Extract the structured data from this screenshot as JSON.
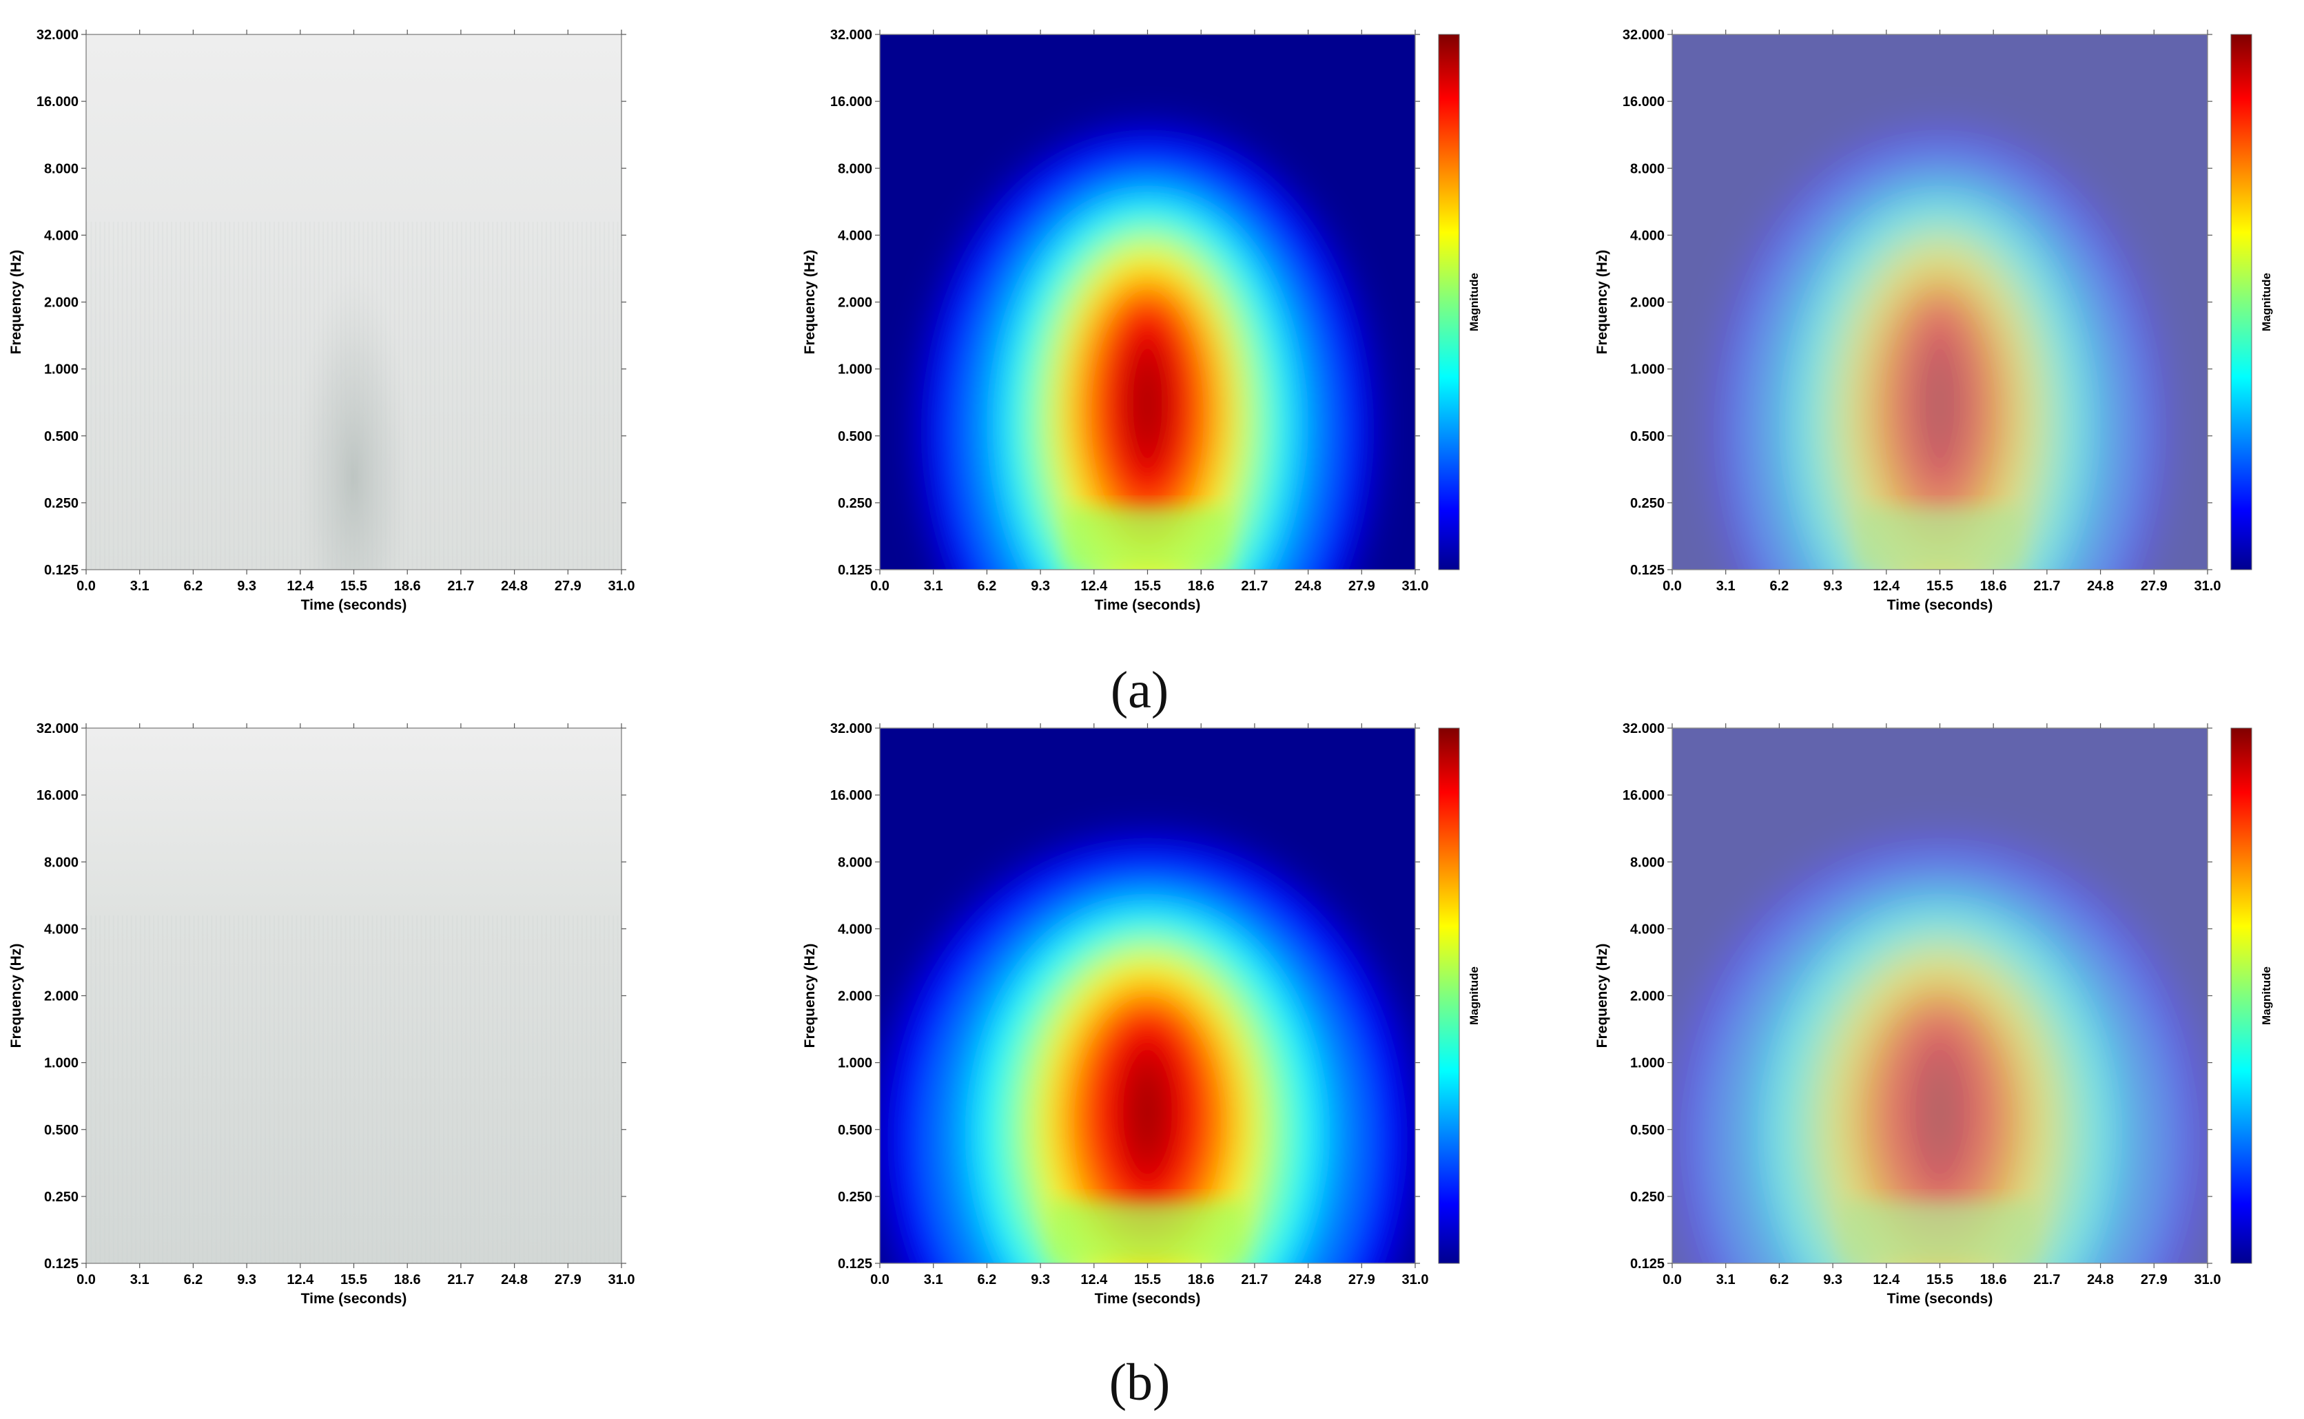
{
  "figure": {
    "panel_labels": [
      "(a)",
      "(b)"
    ],
    "colorbar_label": "Magnitude",
    "colormap": "jet",
    "colors": {
      "grayscale_light": "#ebebeb",
      "grayscale_dark": "#bfc6c3",
      "jet_low": "#00008f",
      "jet_mid": "#ffff00",
      "jet_high": "#800000",
      "overlay_base": "#8080b8"
    }
  },
  "chart_data": [
    {
      "type": "heatmap",
      "row": "a",
      "variant": "scalogram-grayscale",
      "xlabel": "Time (seconds)",
      "ylabel": "Frequency (Hz)",
      "x_ticks": [
        "0.0",
        "3.1",
        "6.2",
        "9.3",
        "12.4",
        "15.5",
        "18.6",
        "21.7",
        "24.8",
        "27.9",
        "31.0"
      ],
      "y_ticks": [
        "0.125",
        "0.250",
        "0.500",
        "1.000",
        "2.000",
        "4.000",
        "8.000",
        "16.000",
        "32.000"
      ],
      "xlim": [
        0,
        31
      ],
      "ylim": [
        0.125,
        32
      ],
      "yscale": "log2",
      "peak": {
        "time": 15.5,
        "frequency": 0.5
      }
    },
    {
      "type": "heatmap",
      "row": "a",
      "variant": "grad-cam",
      "colorbar": "Magnitude",
      "xlabel": "Time (seconds)",
      "ylabel": "Frequency (Hz)",
      "x_ticks": [
        "0.0",
        "3.1",
        "6.2",
        "9.3",
        "12.4",
        "15.5",
        "18.6",
        "21.7",
        "24.8",
        "27.9",
        "31.0"
      ],
      "y_ticks": [
        "0.125",
        "0.250",
        "0.500",
        "1.000",
        "2.000",
        "4.000",
        "8.000",
        "16.000",
        "32.000"
      ],
      "xlim": [
        0,
        31
      ],
      "ylim": [
        0.125,
        32
      ],
      "yscale": "log2",
      "peak": {
        "time": 15.5,
        "frequency": 0.7
      }
    },
    {
      "type": "heatmap",
      "row": "a",
      "variant": "overlay",
      "colorbar": "Magnitude",
      "xlabel": "Time (seconds)",
      "ylabel": "Frequency (Hz)",
      "x_ticks": [
        "0.0",
        "3.1",
        "6.2",
        "9.3",
        "12.4",
        "15.5",
        "18.6",
        "21.7",
        "24.8",
        "27.9",
        "31.0"
      ],
      "y_ticks": [
        "0.125",
        "0.250",
        "0.500",
        "1.000",
        "2.000",
        "4.000",
        "8.000",
        "16.000",
        "32.000"
      ],
      "xlim": [
        0,
        31
      ],
      "ylim": [
        0.125,
        32
      ],
      "yscale": "log2",
      "peak": {
        "time": 15.5,
        "frequency": 0.7
      }
    },
    {
      "type": "heatmap",
      "row": "b",
      "variant": "scalogram-grayscale",
      "xlabel": "Time (seconds)",
      "ylabel": "Frequency (Hz)",
      "x_ticks": [
        "0.0",
        "3.1",
        "6.2",
        "9.3",
        "12.4",
        "15.5",
        "18.6",
        "21.7",
        "24.8",
        "27.9",
        "31.0"
      ],
      "y_ticks": [
        "0.125",
        "0.250",
        "0.500",
        "1.000",
        "2.000",
        "4.000",
        "8.000",
        "16.000",
        "32.000"
      ],
      "xlim": [
        0,
        31
      ],
      "ylim": [
        0.125,
        32
      ],
      "yscale": "log2",
      "peak": null
    },
    {
      "type": "heatmap",
      "row": "b",
      "variant": "grad-cam",
      "colorbar": "Magnitude",
      "xlabel": "Time (seconds)",
      "ylabel": "Frequency (Hz)",
      "x_ticks": [
        "0.0",
        "3.1",
        "6.2",
        "9.3",
        "12.4",
        "15.5",
        "18.6",
        "21.7",
        "24.8",
        "27.9",
        "31.0"
      ],
      "y_ticks": [
        "0.125",
        "0.250",
        "0.500",
        "1.000",
        "2.000",
        "4.000",
        "8.000",
        "16.000",
        "32.000"
      ],
      "xlim": [
        0,
        31
      ],
      "ylim": [
        0.125,
        32
      ],
      "yscale": "log2",
      "peak": {
        "time": 15.5,
        "frequency": 0.6
      }
    },
    {
      "type": "heatmap",
      "row": "b",
      "variant": "overlay",
      "colorbar": "Magnitude",
      "xlabel": "Time (seconds)",
      "ylabel": "Frequency (Hz)",
      "x_ticks": [
        "0.0",
        "3.1",
        "6.2",
        "9.3",
        "12.4",
        "15.5",
        "18.6",
        "21.7",
        "24.8",
        "27.9",
        "31.0"
      ],
      "y_ticks": [
        "0.125",
        "0.250",
        "0.500",
        "1.000",
        "2.000",
        "4.000",
        "8.000",
        "16.000",
        "32.000"
      ],
      "xlim": [
        0,
        31
      ],
      "ylim": [
        0.125,
        32
      ],
      "yscale": "log2",
      "peak": {
        "time": 15.5,
        "frequency": 0.6
      }
    }
  ]
}
